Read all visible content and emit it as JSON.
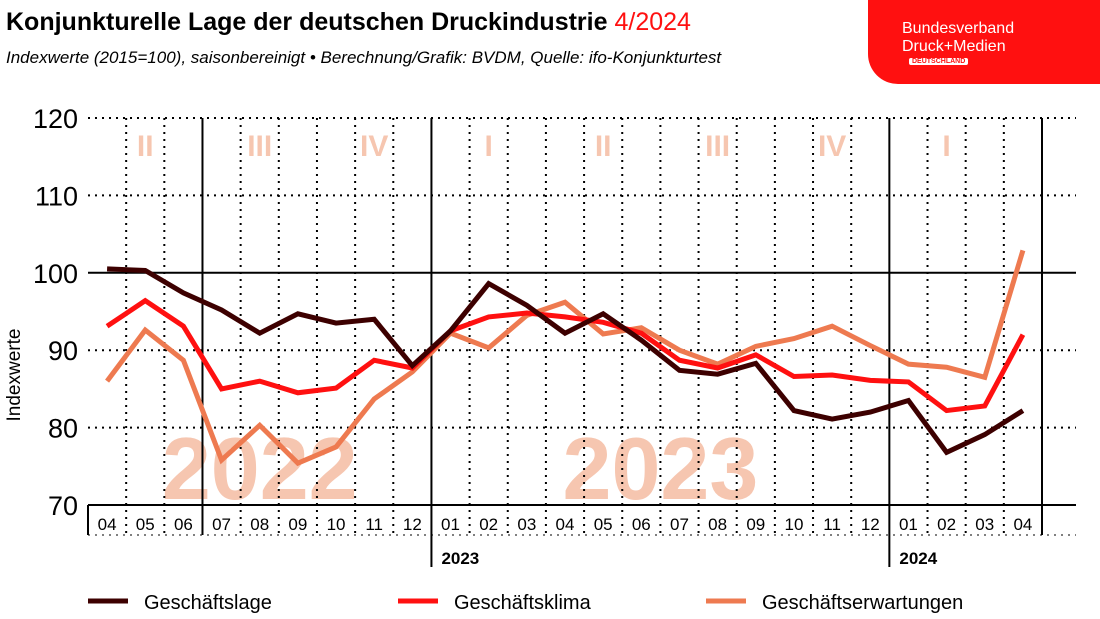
{
  "header": {
    "title": "Konjunkturelle Lage der deutschen Druckindustrie",
    "title_accent": "4/2024",
    "subtitle": "Indexwerte (2015=100), saisonbereinigt • Berechnung/Grafik: BVDM, Quelle: ifo-Konjunkturtest"
  },
  "logo": {
    "line1": "Bundesverband",
    "line2": "Druck+Medien",
    "badge": "DEUTSCHLAND",
    "color": "#ff1010"
  },
  "chart_data": {
    "type": "line",
    "ylabel": "Indexwerte",
    "ylim": [
      70,
      120
    ],
    "yticks": [
      70,
      80,
      90,
      100,
      110,
      120
    ],
    "grid": true,
    "legend_placement": "bottom",
    "categories": [
      "04",
      "05",
      "06",
      "07",
      "08",
      "09",
      "10",
      "11",
      "12",
      "01",
      "02",
      "03",
      "04",
      "05",
      "06",
      "07",
      "08",
      "09",
      "10",
      "11",
      "12",
      "01",
      "02",
      "03",
      "04"
    ],
    "year_labels": [
      {
        "label": "2023",
        "start_index": 9
      },
      {
        "label": "2024",
        "start_index": 21
      }
    ],
    "background_years": [
      {
        "label": "2022",
        "start_index": 0,
        "end_index": 8
      },
      {
        "label": "2023",
        "start_index": 9,
        "end_index": 20
      }
    ],
    "quarters": [
      {
        "label": "II",
        "start_index": 0
      },
      {
        "label": "III",
        "start_index": 3
      },
      {
        "label": "IV",
        "start_index": 6
      },
      {
        "label": "I",
        "start_index": 9
      },
      {
        "label": "II",
        "start_index": 12
      },
      {
        "label": "III",
        "start_index": 15
      },
      {
        "label": "IV",
        "start_index": 18
      },
      {
        "label": "I",
        "start_index": 21
      }
    ],
    "series": [
      {
        "name": "Geschäftslage",
        "color": "#3d0000",
        "values": [
          100.5,
          100.3,
          97.4,
          95.2,
          92.2,
          94.7,
          93.5,
          94.0,
          88.0,
          92.5,
          98.6,
          95.8,
          92.2,
          94.7,
          91.3,
          87.4,
          86.9,
          88.3,
          82.2,
          81.1,
          82.0,
          83.5,
          76.8,
          79.1,
          82.2
        ]
      },
      {
        "name": "Geschäftsklima",
        "color": "#ff1010",
        "values": [
          93.1,
          96.4,
          93.1,
          85.0,
          86.0,
          84.5,
          85.1,
          88.7,
          87.7,
          92.5,
          94.3,
          94.8,
          94.3,
          93.6,
          92.2,
          88.7,
          87.7,
          89.4,
          86.6,
          86.8,
          86.1,
          85.9,
          82.2,
          82.8,
          92.0
        ]
      },
      {
        "name": "Geschäftserwartungen",
        "color": "#ee7a50",
        "values": [
          86.0,
          92.6,
          88.7,
          75.8,
          80.3,
          75.4,
          77.5,
          83.7,
          87.2,
          92.2,
          90.3,
          94.5,
          96.2,
          92.1,
          92.9,
          90.0,
          88.2,
          90.5,
          91.5,
          93.1,
          90.6,
          88.2,
          87.8,
          86.5,
          102.9
        ]
      }
    ]
  }
}
